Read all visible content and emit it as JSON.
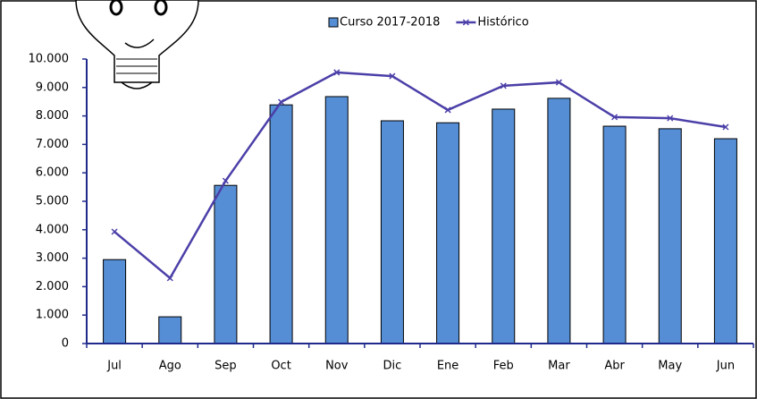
{
  "chart_data": {
    "type": "bar",
    "categories": [
      "Jul",
      "Ago",
      "Sep",
      "Oct",
      "Nov",
      "Dic",
      "Ene",
      "Feb",
      "Mar",
      "Abr",
      "May",
      "Jun"
    ],
    "series": [
      {
        "name": "Curso 2017-2018",
        "type": "bar",
        "color": "#558ed5",
        "values": [
          2950,
          940,
          5560,
          8390,
          8680,
          7830,
          7760,
          8240,
          8620,
          7640,
          7550,
          7200
        ]
      },
      {
        "name": "Histórico",
        "type": "line",
        "color": "#4b3fa8",
        "values": [
          3930,
          2300,
          5720,
          8490,
          9530,
          9400,
          8210,
          9060,
          9180,
          7960,
          7920,
          7610
        ]
      }
    ],
    "ylim": [
      0,
      10000
    ],
    "yticks": [
      0,
      {
        "value": 1000,
        "label": "1.000"
      },
      {
        "value": 2000,
        "label": "2.000"
      },
      {
        "value": 3000,
        "label": "3.000"
      },
      {
        "value": 4000,
        "label": "4.000"
      },
      {
        "value": 5000,
        "label": "5.000"
      },
      {
        "value": 6000,
        "label": "6.000"
      },
      {
        "value": 7000,
        "label": "7.000"
      },
      {
        "value": 8000,
        "label": "8.000"
      },
      {
        "value": 9000,
        "label": "9.000"
      },
      {
        "value": 10000,
        "label": "10.000"
      }
    ],
    "grid": false,
    "legend": "top"
  }
}
